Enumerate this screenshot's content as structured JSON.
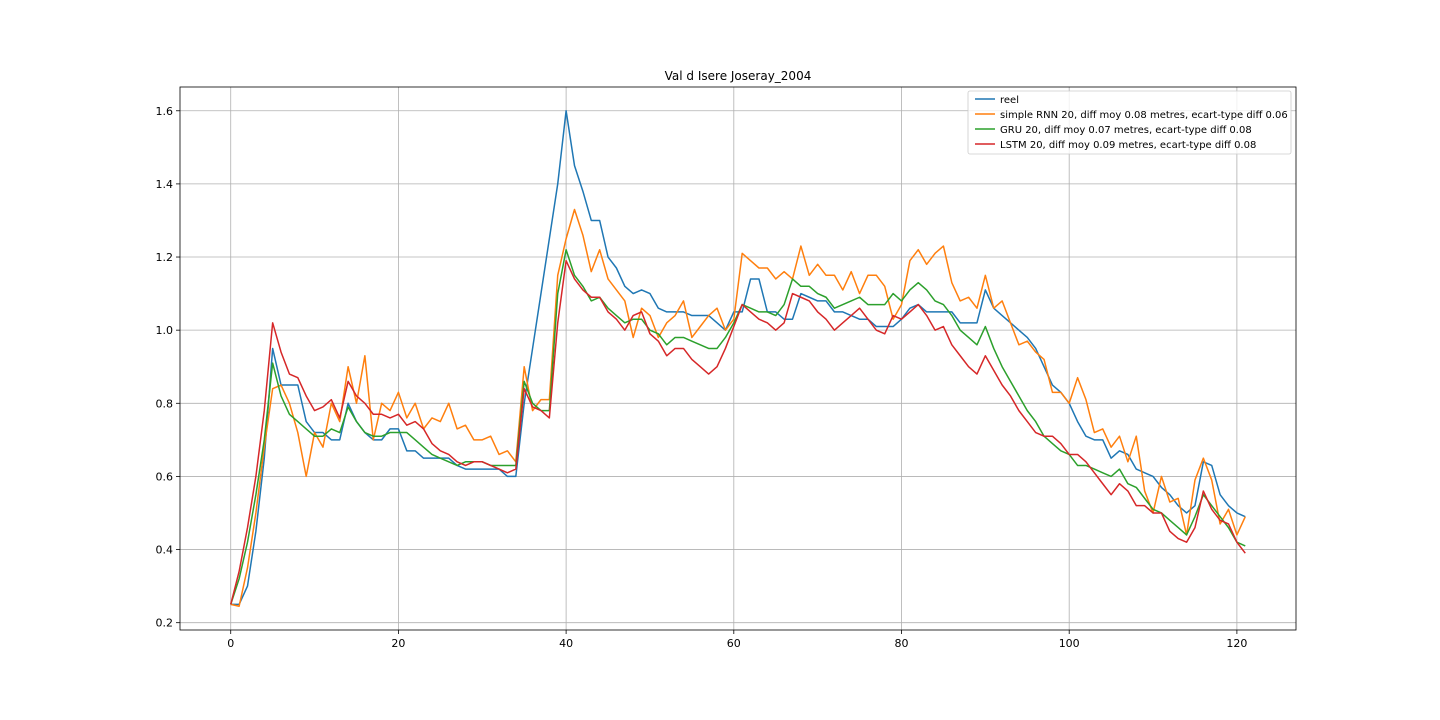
{
  "chart_data": {
    "type": "line",
    "title": "Val d Isere Joseray_2004",
    "xlabel": "",
    "ylabel": "",
    "xlim": [
      -6.05,
      127.05
    ],
    "ylim": [
      0.18,
      1.665
    ],
    "xticks": [
      0,
      20,
      40,
      60,
      80,
      100,
      120
    ],
    "yticks": [
      0.2,
      0.4,
      0.6,
      0.8,
      1.0,
      1.2,
      1.4,
      1.6
    ],
    "ytick_labels": [
      "0.2",
      "0.4",
      "0.6",
      "0.8",
      "1.0",
      "1.2",
      "1.4",
      "1.6"
    ],
    "grid": true,
    "legend": "top-right",
    "series": [
      {
        "name": "reel",
        "color": "#1f77b4",
        "values": [
          0.25,
          0.25,
          0.3,
          0.45,
          0.65,
          0.95,
          0.85,
          0.85,
          0.85,
          0.75,
          0.72,
          0.72,
          0.7,
          0.7,
          0.8,
          0.75,
          0.72,
          0.7,
          0.7,
          0.73,
          0.73,
          0.67,
          0.67,
          0.65,
          0.65,
          0.65,
          0.65,
          0.63,
          0.62,
          0.62,
          0.62,
          0.62,
          0.62,
          0.6,
          0.6,
          0.8,
          0.95,
          1.1,
          1.25,
          1.4,
          1.6,
          1.45,
          1.38,
          1.3,
          1.3,
          1.2,
          1.17,
          1.12,
          1.1,
          1.11,
          1.1,
          1.06,
          1.05,
          1.05,
          1.05,
          1.04,
          1.04,
          1.04,
          1.02,
          1.0,
          1.05,
          1.05,
          1.14,
          1.14,
          1.05,
          1.05,
          1.03,
          1.03,
          1.1,
          1.09,
          1.08,
          1.08,
          1.05,
          1.05,
          1.04,
          1.03,
          1.03,
          1.01,
          1.01,
          1.01,
          1.03,
          1.06,
          1.07,
          1.05,
          1.05,
          1.05,
          1.05,
          1.02,
          1.02,
          1.02,
          1.11,
          1.06,
          1.04,
          1.02,
          1.0,
          0.98,
          0.95,
          0.9,
          0.85,
          0.83,
          0.8,
          0.75,
          0.71,
          0.7,
          0.7,
          0.65,
          0.67,
          0.66,
          0.62,
          0.61,
          0.6,
          0.57,
          0.55,
          0.52,
          0.5,
          0.52,
          0.64,
          0.63,
          0.55,
          0.52,
          0.5,
          0.49
        ]
      },
      {
        "name": "simple RNN 20, diff moy 0.08 metres, ecart-type diff 0.06",
        "color": "#ff7f0e",
        "values": [
          0.25,
          0.245,
          0.35,
          0.5,
          0.68,
          0.84,
          0.85,
          0.8,
          0.72,
          0.6,
          0.72,
          0.68,
          0.8,
          0.75,
          0.9,
          0.8,
          0.93,
          0.7,
          0.8,
          0.78,
          0.83,
          0.76,
          0.8,
          0.73,
          0.76,
          0.75,
          0.8,
          0.73,
          0.74,
          0.7,
          0.7,
          0.71,
          0.66,
          0.67,
          0.64,
          0.9,
          0.78,
          0.81,
          0.81,
          1.15,
          1.25,
          1.33,
          1.26,
          1.16,
          1.22,
          1.14,
          1.11,
          1.08,
          0.98,
          1.06,
          1.04,
          0.98,
          1.02,
          1.04,
          1.08,
          0.98,
          1.01,
          1.04,
          1.06,
          1.0,
          1.03,
          1.21,
          1.19,
          1.17,
          1.17,
          1.14,
          1.16,
          1.14,
          1.23,
          1.15,
          1.18,
          1.15,
          1.15,
          1.11,
          1.16,
          1.1,
          1.15,
          1.15,
          1.12,
          1.03,
          1.07,
          1.19,
          1.22,
          1.18,
          1.21,
          1.23,
          1.13,
          1.08,
          1.09,
          1.06,
          1.15,
          1.06,
          1.08,
          1.02,
          0.96,
          0.97,
          0.94,
          0.92,
          0.83,
          0.83,
          0.8,
          0.87,
          0.81,
          0.72,
          0.73,
          0.68,
          0.71,
          0.64,
          0.71,
          0.56,
          0.5,
          0.6,
          0.53,
          0.54,
          0.44,
          0.59,
          0.65,
          0.59,
          0.47,
          0.51,
          0.44,
          0.49
        ]
      },
      {
        "name": "GRU 20, diff moy 0.07 metres, ecart-type diff 0.08",
        "color": "#2ca02c",
        "values": [
          0.25,
          0.32,
          0.42,
          0.55,
          0.7,
          0.91,
          0.82,
          0.77,
          0.75,
          0.73,
          0.71,
          0.71,
          0.73,
          0.72,
          0.79,
          0.75,
          0.72,
          0.71,
          0.71,
          0.72,
          0.72,
          0.72,
          0.7,
          0.68,
          0.66,
          0.65,
          0.64,
          0.63,
          0.64,
          0.64,
          0.64,
          0.63,
          0.63,
          0.63,
          0.63,
          0.86,
          0.8,
          0.78,
          0.78,
          1.1,
          1.22,
          1.15,
          1.12,
          1.08,
          1.09,
          1.06,
          1.04,
          1.02,
          1.03,
          1.03,
          1.0,
          0.99,
          0.96,
          0.98,
          0.98,
          0.97,
          0.96,
          0.95,
          0.95,
          0.98,
          1.02,
          1.07,
          1.06,
          1.05,
          1.05,
          1.04,
          1.07,
          1.14,
          1.12,
          1.12,
          1.1,
          1.09,
          1.06,
          1.07,
          1.08,
          1.09,
          1.07,
          1.07,
          1.07,
          1.1,
          1.08,
          1.11,
          1.13,
          1.11,
          1.08,
          1.07,
          1.04,
          1.0,
          0.98,
          0.96,
          1.01,
          0.95,
          0.9,
          0.86,
          0.82,
          0.78,
          0.75,
          0.71,
          0.69,
          0.67,
          0.66,
          0.63,
          0.63,
          0.62,
          0.61,
          0.6,
          0.62,
          0.58,
          0.57,
          0.54,
          0.51,
          0.5,
          0.48,
          0.46,
          0.44,
          0.49,
          0.55,
          0.52,
          0.49,
          0.46,
          0.42,
          0.41
        ]
      },
      {
        "name": "LSTM 20, diff moy 0.09 metres, ecart-type diff 0.08",
        "color": "#d62728",
        "values": [
          0.25,
          0.34,
          0.46,
          0.6,
          0.78,
          1.02,
          0.94,
          0.88,
          0.87,
          0.82,
          0.78,
          0.79,
          0.81,
          0.76,
          0.86,
          0.82,
          0.8,
          0.77,
          0.77,
          0.76,
          0.77,
          0.74,
          0.75,
          0.73,
          0.69,
          0.67,
          0.66,
          0.64,
          0.63,
          0.64,
          0.64,
          0.63,
          0.62,
          0.61,
          0.62,
          0.84,
          0.79,
          0.78,
          0.76,
          1.02,
          1.19,
          1.14,
          1.11,
          1.09,
          1.09,
          1.05,
          1.03,
          1.0,
          1.04,
          1.05,
          0.99,
          0.97,
          0.93,
          0.95,
          0.95,
          0.92,
          0.9,
          0.88,
          0.9,
          0.95,
          1.01,
          1.07,
          1.05,
          1.03,
          1.02,
          1.0,
          1.02,
          1.1,
          1.09,
          1.08,
          1.05,
          1.03,
          1.0,
          1.02,
          1.04,
          1.06,
          1.03,
          1.0,
          0.99,
          1.04,
          1.03,
          1.05,
          1.07,
          1.04,
          1.0,
          1.01,
          0.96,
          0.93,
          0.9,
          0.88,
          0.93,
          0.89,
          0.85,
          0.82,
          0.78,
          0.75,
          0.72,
          0.71,
          0.71,
          0.69,
          0.66,
          0.66,
          0.64,
          0.61,
          0.58,
          0.55,
          0.58,
          0.56,
          0.52,
          0.52,
          0.5,
          0.5,
          0.45,
          0.43,
          0.42,
          0.46,
          0.56,
          0.51,
          0.48,
          0.47,
          0.42,
          0.39
        ]
      }
    ]
  }
}
